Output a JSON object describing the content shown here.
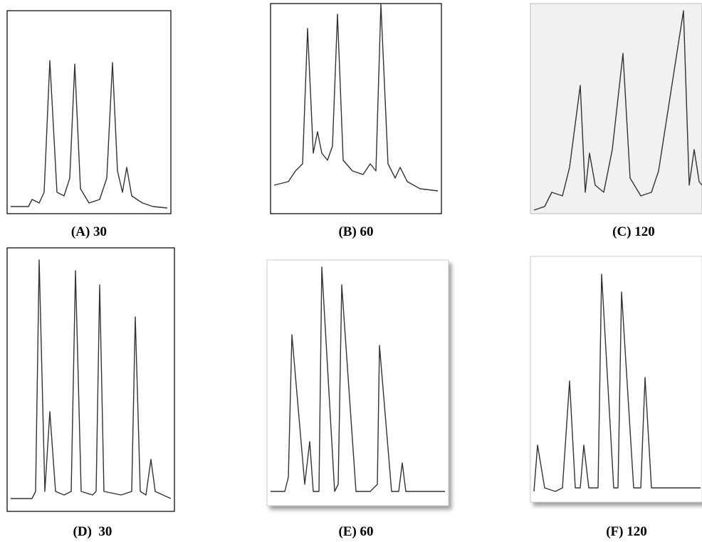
{
  "panels": [
    {
      "caption": "(A) 30"
    },
    {
      "caption": "(B) 60"
    },
    {
      "caption": "(C) 120"
    },
    {
      "caption": "(D)  30"
    },
    {
      "caption": "(E) 60"
    },
    {
      "caption": "(F) 120"
    }
  ]
}
